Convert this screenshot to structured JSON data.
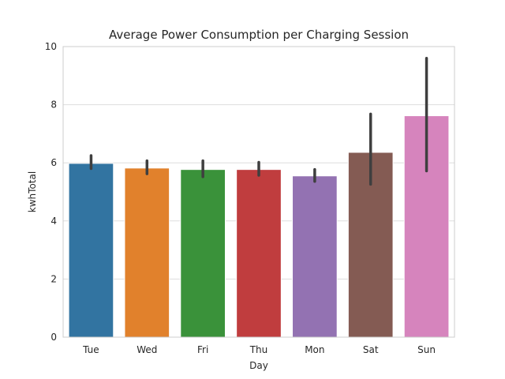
{
  "chart_data": {
    "type": "bar",
    "title": "Average Power Consumption per Charging Session",
    "xlabel": "Day",
    "ylabel": "kwhTotal",
    "categories": [
      "Tue",
      "Wed",
      "Fri",
      "Thu",
      "Mon",
      "Sat",
      "Sun"
    ],
    "values": [
      5.98,
      5.82,
      5.77,
      5.77,
      5.55,
      6.36,
      7.62
    ],
    "error_low": [
      5.8,
      5.62,
      5.52,
      5.57,
      5.36,
      5.26,
      5.72
    ],
    "error_high": [
      6.25,
      6.07,
      6.07,
      6.02,
      5.77,
      7.68,
      9.6
    ],
    "ylim": [
      0,
      10
    ],
    "yticks": [
      0,
      2,
      4,
      6,
      8,
      10
    ],
    "grid": true,
    "colors": [
      "#3274a1",
      "#e1812c",
      "#3a923a",
      "#c03d3e",
      "#9372b2",
      "#845b53",
      "#d684bd"
    ]
  }
}
